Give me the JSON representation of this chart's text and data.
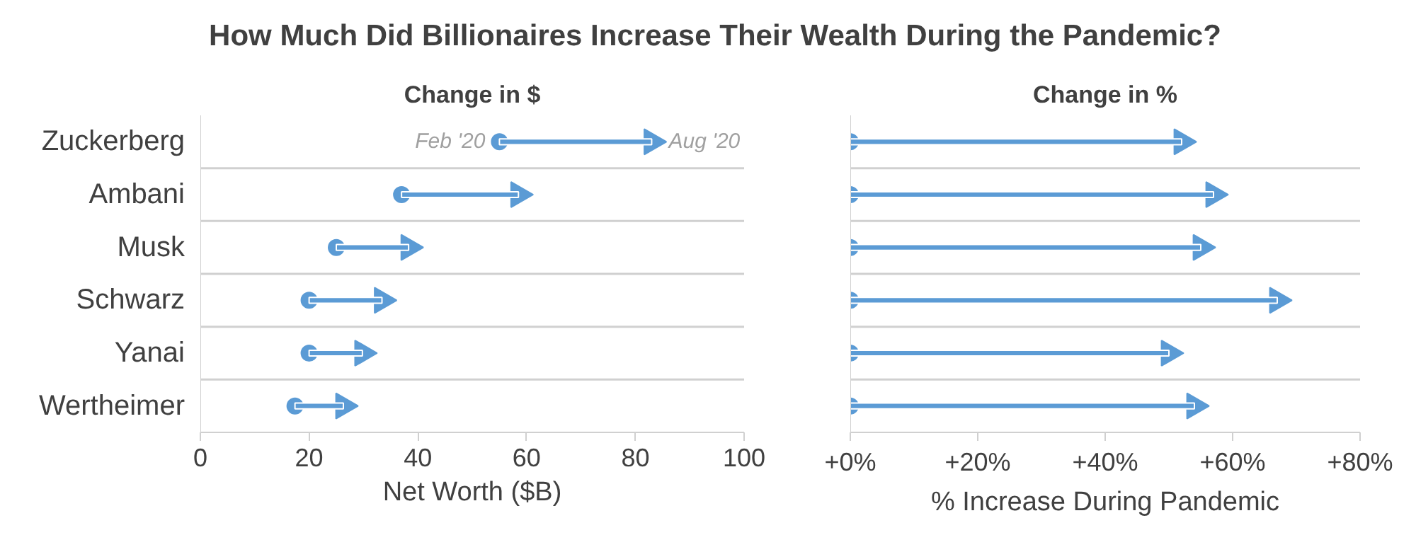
{
  "chart_data": [
    {
      "type": "bar",
      "orientation": "horizontal",
      "title": "How Much Did Billionaires Increase Their Wealth During the Pandemic?",
      "subtitle": "Change in $",
      "xlabel": "Net Worth ($B)",
      "categories": [
        "Zuckerberg",
        "Ambani",
        "Musk",
        "Schwarz",
        "Yanai",
        "Wertheimer"
      ],
      "series": [
        {
          "color": "#5b9bd5",
          "base": [
            55,
            37,
            25,
            20,
            20,
            17.4
          ],
          "values": [
            28,
            21.5,
            13.3,
            13.4,
            9.8,
            8.9
          ]
        },
        {
          "type": "scatter",
          "color": "#5b9bd5",
          "marker": "circle",
          "values": [
            55,
            37,
            25,
            20,
            20,
            17.4
          ]
        },
        {
          "type": "scatter",
          "color": "#5b9bd5",
          "marker": "triangle",
          "values": [
            83,
            58.5,
            38.3,
            33.4,
            29.8,
            26.3
          ]
        }
      ],
      "xlim": [
        0,
        100
      ],
      "xticks": [
        0,
        20,
        40,
        60,
        80,
        100
      ],
      "grid": "y",
      "annotations": [
        {
          "text": "Feb '20",
          "x": 55,
          "y": "Zuckerberg"
        },
        {
          "text": "Aug '20",
          "x": 83,
          "y": "Zuckerberg"
        }
      ]
    },
    {
      "type": "bar",
      "orientation": "horizontal",
      "title": "Change in %",
      "xlabel": "% Increase During Pandemic",
      "categories": [
        "Zuckerberg",
        "Ambani",
        "Musk",
        "Schwarz",
        "Yanai",
        "Wertheimer"
      ],
      "series": [
        {
          "color": "#5b9bd5",
          "values": [
            52,
            57,
            55,
            67,
            50,
            54
          ]
        },
        {
          "type": "scatter",
          "color": "#5b9bd5",
          "marker": "circle",
          "values": [
            0,
            0,
            0,
            0,
            0,
            0
          ]
        },
        {
          "type": "scatter",
          "color": "#5b9bd5",
          "marker": "triangle",
          "values": [
            52,
            57,
            55,
            67,
            50,
            54
          ]
        }
      ],
      "xlim": [
        0,
        80
      ],
      "xticks": [
        {
          "value": 0,
          "label": "+0%"
        },
        {
          "value": 20,
          "label": "+20%"
        },
        {
          "value": 40,
          "label": "+40%"
        },
        {
          "value": 60,
          "label": "+60%"
        },
        {
          "value": 80,
          "label": "+80%"
        }
      ],
      "grid": "y",
      "tick_labels": "x"
    }
  ]
}
